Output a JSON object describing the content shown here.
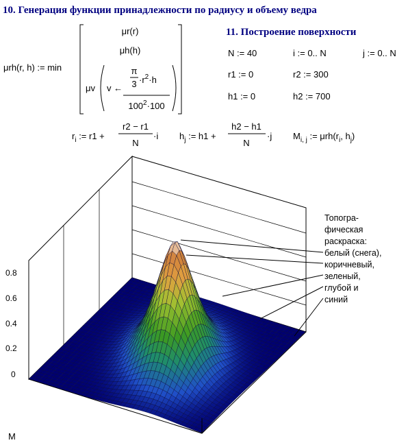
{
  "section10": {
    "title": "10. Генерация функции принадлежности по радиусу и объему ведра",
    "formula": {
      "lhs": "μrh(r, h) := min",
      "row1": "μr(r)",
      "row2": "μh(h)",
      "mu_v": "μv",
      "assign": "v ←",
      "pi": "π",
      "three": "3",
      "num_r": "·r",
      "num_exp": "2",
      "num_h": "·h",
      "den_base": "100",
      "den_exp": "2",
      "den_tail": "·100"
    }
  },
  "section11": {
    "title": "11. Построение поверхности",
    "assignments": [
      "N := 40",
      "i := 0.. N",
      "j := 0.. N",
      "r1 := 0",
      "r2 := 300",
      "h1 := 0",
      "h2 := 700"
    ],
    "r_def": {
      "name": "r",
      "sub": "i",
      "rhs": " := r1 + ",
      "num": "r2 − r1",
      "den": "N",
      "tail": "·i"
    },
    "h_def": {
      "name": "h",
      "sub": "j",
      "rhs": " := h1 + ",
      "num": "h2 − h1",
      "den": "N",
      "tail": "·j"
    },
    "m_def": {
      "name": "M",
      "sub": "i, j",
      "rhs": " := μrh(r",
      "sub1": "i",
      "mid": ", h",
      "sub2": "j",
      "close": ")"
    }
  },
  "plot": {
    "z_tick_labels": [
      "0.8",
      "0.6",
      "0.4",
      "0.2",
      "0"
    ],
    "axis_label": "M",
    "annotation": [
      "Топогра-",
      "фическая",
      "раскраска:",
      "белый (снега),",
      "коричневый,",
      "зеленый,",
      "глубой и",
      "синий"
    ]
  }
}
